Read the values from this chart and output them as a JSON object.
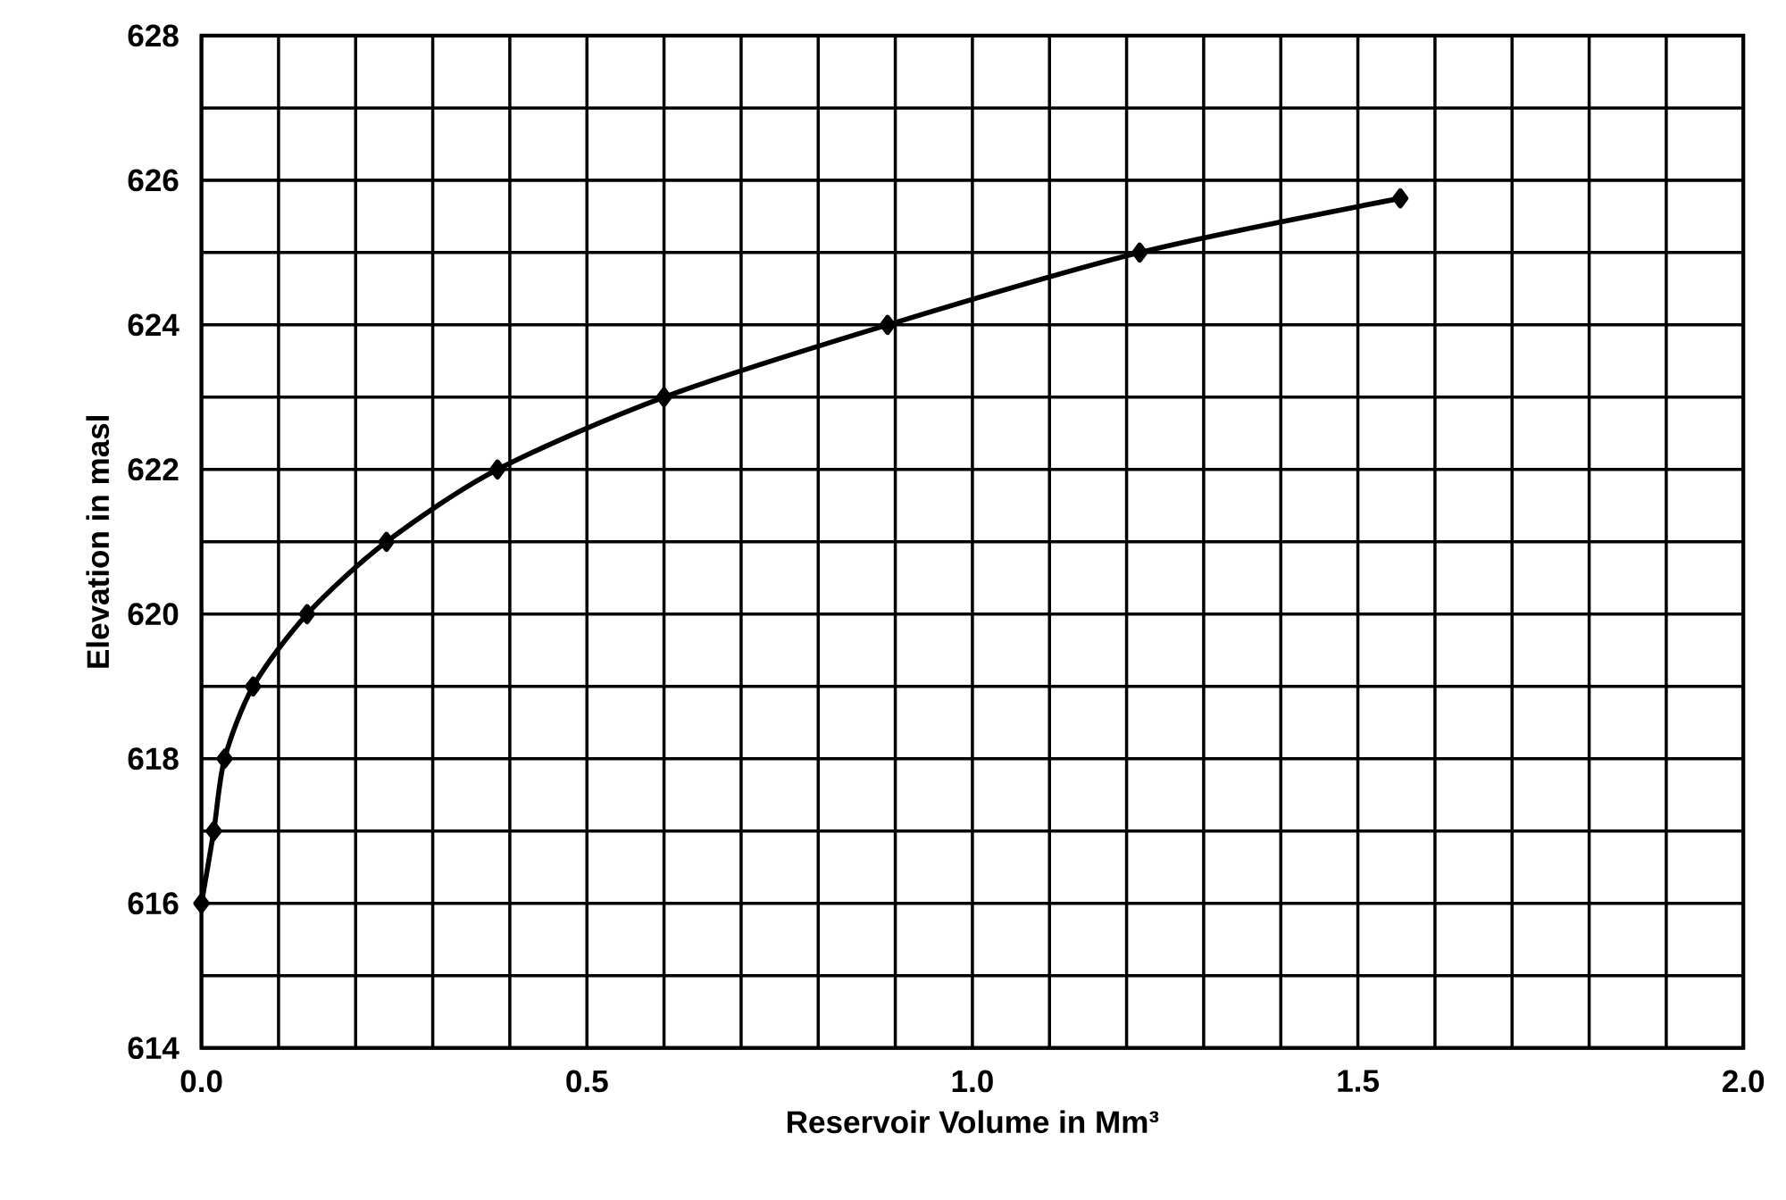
{
  "chart_data": {
    "type": "line",
    "xlabel": "Reservoir Volume in Mm³",
    "ylabel": "Elevation in masl",
    "x": [
      0.0,
      0.016,
      0.03,
      0.067,
      0.137,
      0.24,
      0.384,
      0.6,
      0.89,
      1.217,
      1.555
    ],
    "values": [
      616,
      617,
      618,
      619,
      620,
      621,
      622,
      623,
      624,
      625,
      625.75
    ],
    "color": "#000000",
    "marker": "diamond",
    "line_style": "solid",
    "grid": true,
    "xlim": [
      0,
      2
    ],
    "ylim": [
      614,
      628
    ],
    "xticks": [
      {
        "value": 0,
        "label": "0.0"
      },
      {
        "value": 0.1,
        "label": null
      },
      {
        "value": 0.2,
        "label": null
      },
      {
        "value": 0.3,
        "label": null
      },
      {
        "value": 0.4,
        "label": null
      },
      {
        "value": 0.5,
        "label": "0.5"
      },
      {
        "value": 0.6,
        "label": null
      },
      {
        "value": 0.7,
        "label": null
      },
      {
        "value": 0.8,
        "label": null
      },
      {
        "value": 0.9,
        "label": null
      },
      {
        "value": 1.0,
        "label": "1.0"
      },
      {
        "value": 1.1,
        "label": null
      },
      {
        "value": 1.2,
        "label": null
      },
      {
        "value": 1.3,
        "label": null
      },
      {
        "value": 1.4,
        "label": null
      },
      {
        "value": 1.5,
        "label": "1.5"
      },
      {
        "value": 1.6,
        "label": null
      },
      {
        "value": 1.7,
        "label": null
      },
      {
        "value": 1.8,
        "label": null
      },
      {
        "value": 1.9,
        "label": null
      },
      {
        "value": 2.0,
        "label": "2.0"
      }
    ],
    "yticks": [
      614,
      {
        "value": 615,
        "label": null
      },
      616,
      {
        "value": 617,
        "label": null
      },
      618,
      {
        "value": 619,
        "label": null
      },
      620,
      {
        "value": 621,
        "label": null
      },
      622,
      {
        "value": 623,
        "label": null
      },
      624,
      {
        "value": 625,
        "label": null
      },
      626,
      {
        "value": 627,
        "label": null
      },
      628
    ]
  }
}
